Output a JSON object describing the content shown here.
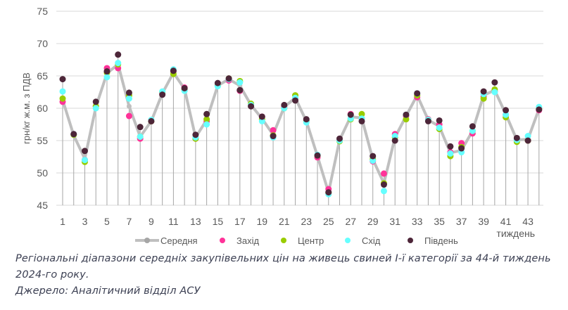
{
  "chart_data": {
    "type": "line",
    "ylabel": "грн/кг ж.м. з ПДВ",
    "xlabel": "тиждень",
    "ylim": [
      45,
      75
    ],
    "yticks": [
      "45",
      "50",
      "55",
      "60",
      "65",
      "70",
      "75"
    ],
    "xticks": [
      "1",
      "3",
      "5",
      "7",
      "9",
      "11",
      "13",
      "15",
      "17",
      "19",
      "21",
      "23",
      "25",
      "27",
      "29",
      "31",
      "33",
      "35",
      "37",
      "39",
      "41",
      "43"
    ],
    "grid": true,
    "legend_position": "bottom",
    "x": [
      1,
      2,
      3,
      4,
      5,
      6,
      7,
      8,
      9,
      10,
      11,
      12,
      13,
      14,
      15,
      16,
      17,
      18,
      19,
      20,
      21,
      22,
      23,
      24,
      25,
      26,
      27,
      28,
      29,
      30,
      31,
      32,
      33,
      34,
      35,
      36,
      37,
      38,
      39,
      40,
      41,
      42,
      43,
      44
    ],
    "series": [
      {
        "name": "Середня",
        "color": "#bfbfbf",
        "style": "line",
        "values": [
          61.3,
          55.8,
          52.2,
          60.2,
          65.4,
          66.8,
          60.3,
          55.6,
          58.0,
          62.3,
          65.5,
          63.0,
          55.5,
          58.2,
          63.5,
          64.5,
          63.5,
          60.5,
          58.4,
          55.9,
          60.2,
          61.6,
          58.0,
          52.6,
          47.0,
          55.1,
          58.7,
          58.5,
          52.1,
          48.4,
          55.5,
          58.8,
          62.0,
          58.2,
          57.2,
          53.1,
          53.5,
          56.5,
          62.0,
          62.8,
          59.1,
          55.1,
          55.2,
          59.9
        ]
      },
      {
        "name": "Захід",
        "color": "#ff3399",
        "style": "marker",
        "values": [
          61.0,
          56.0,
          52.0,
          60.3,
          66.2,
          66.2,
          58.8,
          55.3,
          58.0,
          62.3,
          65.7,
          63.2,
          55.3,
          58.0,
          63.5,
          64.3,
          62.7,
          60.5,
          58.7,
          56.6,
          60.2,
          61.5,
          58.1,
          52.4,
          47.5,
          55.0,
          59.1,
          58.4,
          51.8,
          49.9,
          56.0,
          58.8,
          61.7,
          58.3,
          57.5,
          53.2,
          54.6,
          56.1,
          61.8,
          62.6,
          59.0,
          55.1,
          55.0,
          59.7
        ]
      },
      {
        "name": "Центр",
        "color": "#99cc00",
        "style": "marker",
        "values": [
          61.5,
          55.9,
          51.7,
          60.3,
          65.5,
          66.8,
          62.0,
          55.6,
          58.0,
          62.5,
          65.3,
          62.9,
          55.3,
          58.3,
          63.5,
          64.6,
          64.2,
          60.7,
          58.3,
          55.8,
          60.0,
          62.0,
          58.0,
          52.7,
          46.9,
          54.9,
          58.3,
          59.1,
          52.1,
          48.4,
          55.5,
          58.3,
          62.0,
          58.2,
          56.8,
          52.6,
          54.0,
          56.5,
          61.5,
          62.9,
          58.6,
          54.8,
          55.0,
          59.9
        ]
      },
      {
        "name": "Схід",
        "color": "#66ffff",
        "style": "marker",
        "values": [
          62.6,
          56.0,
          52.0,
          60.0,
          64.8,
          67.0,
          61.5,
          55.6,
          58.2,
          62.6,
          66.0,
          62.7,
          55.5,
          57.5,
          63.4,
          64.5,
          64.0,
          60.5,
          58.0,
          55.5,
          60.0,
          61.6,
          57.8,
          52.8,
          46.7,
          55.0,
          58.4,
          58.4,
          51.9,
          47.2,
          55.7,
          59.0,
          62.3,
          58.2,
          57.0,
          53.0,
          53.2,
          56.5,
          62.2,
          62.5,
          59.0,
          55.1,
          55.7,
          60.2
        ]
      },
      {
        "name": "Південь",
        "color": "#4d2639",
        "style": "marker",
        "values": [
          64.5,
          56.0,
          53.4,
          61.0,
          65.7,
          68.3,
          62.4,
          57.1,
          58.0,
          62.1,
          65.8,
          63.1,
          55.9,
          59.1,
          63.9,
          64.6,
          62.8,
          60.3,
          58.7,
          55.7,
          60.5,
          61.2,
          58.3,
          52.7,
          47.0,
          55.3,
          59.0,
          58.0,
          52.6,
          48.2,
          55.0,
          59.0,
          62.3,
          58.0,
          58.1,
          54.1,
          53.8,
          57.2,
          62.6,
          64.0,
          59.7,
          55.4,
          55.0,
          59.8
        ]
      }
    ]
  },
  "caption": {
    "line1": "Регіональні діапазони середніх закупівельних цін на живець свиней І-ї категорії за 44-й тиждень",
    "line2": "2024-го року.",
    "source": "Джерело: Аналітичний відділ АСУ"
  }
}
